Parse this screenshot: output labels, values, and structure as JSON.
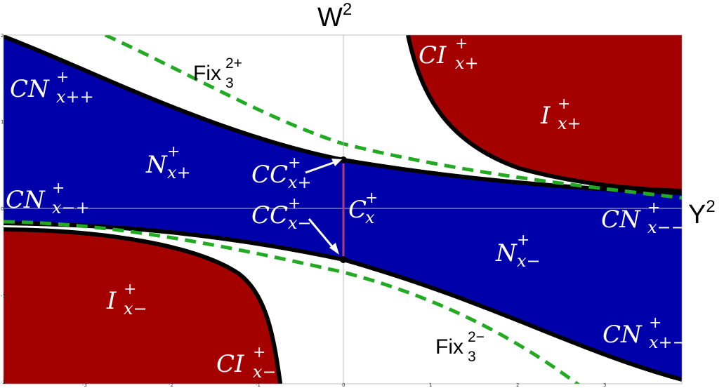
{
  "axes": {
    "x_title_base": "Y",
    "x_title_exp": "2",
    "y_title_base": "W",
    "y_title_exp": "2",
    "x_ticks": [
      "-3",
      "-2",
      "-1",
      "0",
      "1",
      "2",
      "3"
    ],
    "y_ticks": [
      "2",
      "1",
      "0",
      "-1",
      "-2"
    ]
  },
  "colors": {
    "blue_region": "#0000aa",
    "red_region": "#a50000",
    "boundary": "#000000",
    "fix_curve": "#22aa22",
    "segment": "#b03a7a"
  },
  "regions": {
    "cn_xpp": {
      "base": "CN",
      "sup": "+",
      "sub": "x++"
    },
    "cn_xmp": {
      "base": "CN",
      "sup": "+",
      "sub": "x−+"
    },
    "n_xp": {
      "base": "N",
      "sup": "+",
      "sub": "x+"
    },
    "n_xm": {
      "base": "N",
      "sup": "+",
      "sub": "x−"
    },
    "cc_xp": {
      "base": "CC",
      "sup": "+",
      "sub": "x+"
    },
    "cc_xm": {
      "base": "CC",
      "sup": "+",
      "sub": "x−"
    },
    "c_x": {
      "base": "C",
      "sup": "+",
      "sub": "x"
    },
    "cn_xmm": {
      "base": "CN",
      "sup": "+",
      "sub": "x−−"
    },
    "cn_xpm": {
      "base": "CN",
      "sup": "+",
      "sub": "x+−"
    },
    "ci_xp": {
      "base": "CI",
      "sup": "+",
      "sub": "x+"
    },
    "i_xp": {
      "base": "I",
      "sup": "+",
      "sub": "x+"
    },
    "i_xm": {
      "base": "I",
      "sup": "+",
      "sub": "x−"
    },
    "ci_xm": {
      "base": "CI",
      "sup": "+",
      "sub": "x−"
    }
  },
  "fix_labels": {
    "upper": {
      "base": "Fix",
      "sub": "3",
      "sup": "2+"
    },
    "lower": {
      "base": "Fix",
      "sub": "3",
      "sup": "2−"
    }
  }
}
